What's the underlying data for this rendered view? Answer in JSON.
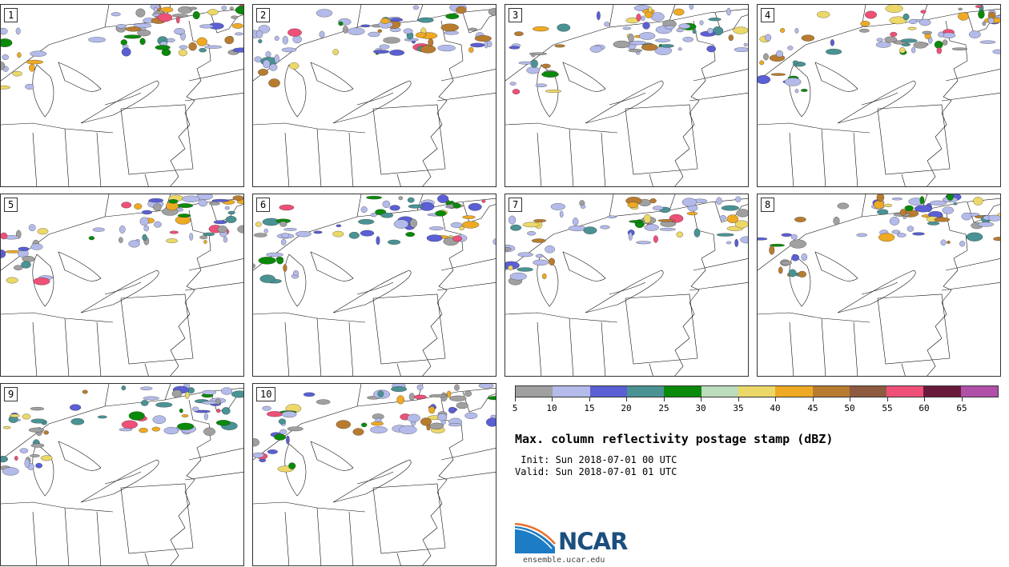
{
  "figure": {
    "title": "Max. column reflectivity postage stamp (dBZ)",
    "init": " Init: Sun 2018-07-01 00 UTC",
    "valid": "Valid: Sun 2018-07-01 01 UTC",
    "logo_text": "NCAR",
    "url": "ensemble.ucar.edu"
  },
  "panels": [
    {
      "label": "1"
    },
    {
      "label": "2"
    },
    {
      "label": "3"
    },
    {
      "label": "4"
    },
    {
      "label": "5"
    },
    {
      "label": "6"
    },
    {
      "label": "7"
    },
    {
      "label": "8"
    },
    {
      "label": "9"
    },
    {
      "label": "10"
    }
  ],
  "colorbar": {
    "units": "dBZ",
    "ticks": [
      "5",
      "10",
      "15",
      "20",
      "25",
      "30",
      "35",
      "40",
      "45",
      "50",
      "55",
      "60",
      "65"
    ],
    "colors": [
      "#a0a0a0",
      "#b4bbea",
      "#5a5fd4",
      "#4a9294",
      "#0a8a0a",
      "#bcdcbc",
      "#ecd868",
      "#eeaa24",
      "#b87c30",
      "#8e5a40",
      "#ee5078",
      "#6a1a3a",
      "#b050a8"
    ]
  }
}
